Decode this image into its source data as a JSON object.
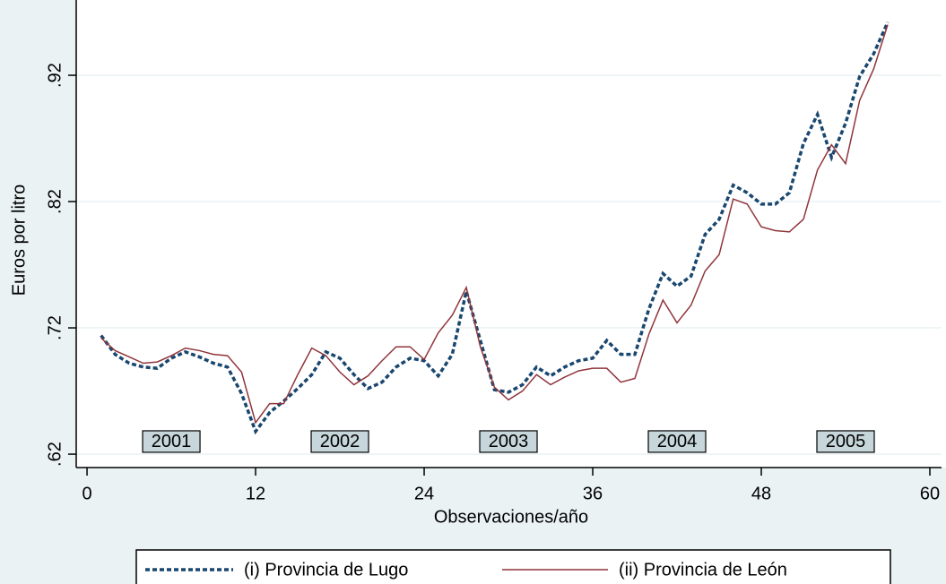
{
  "chart_data": {
    "type": "line",
    "x_label": "Observaciones/año",
    "y_label": "Euros por litro",
    "x": [
      1,
      2,
      3,
      4,
      5,
      6,
      7,
      8,
      9,
      10,
      11,
      12,
      13,
      14,
      15,
      16,
      17,
      18,
      19,
      20,
      21,
      22,
      23,
      24,
      25,
      26,
      27,
      28,
      29,
      30,
      31,
      32,
      33,
      34,
      35,
      36,
      37,
      38,
      39,
      40,
      41,
      42,
      43,
      44,
      45,
      46,
      47,
      48,
      49,
      50,
      51,
      52,
      53,
      54,
      55,
      56,
      57
    ],
    "series": [
      {
        "name": "(i) Provincia de Lugo",
        "color": "#1a476f",
        "dash": true,
        "values": [
          0.714,
          0.699,
          0.692,
          0.689,
          0.688,
          0.696,
          0.701,
          0.697,
          0.692,
          0.689,
          0.668,
          0.638,
          0.653,
          0.662,
          0.672,
          0.683,
          0.701,
          0.696,
          0.683,
          0.672,
          0.677,
          0.689,
          0.696,
          0.694,
          0.682,
          0.699,
          0.749,
          0.71,
          0.671,
          0.669,
          0.675,
          0.689,
          0.682,
          0.689,
          0.694,
          0.696,
          0.71,
          0.699,
          0.699,
          0.735,
          0.763,
          0.753,
          0.761,
          0.794,
          0.806,
          0.833,
          0.827,
          0.818,
          0.818,
          0.827,
          0.866,
          0.889,
          0.855,
          0.882,
          0.919,
          0.937,
          0.962
        ]
      },
      {
        "name": "(ii) Provincia de León",
        "color": "#90353b",
        "dash": false,
        "values": [
          0.712,
          0.702,
          0.697,
          0.692,
          0.693,
          0.698,
          0.704,
          0.702,
          0.699,
          0.698,
          0.685,
          0.645,
          0.66,
          0.66,
          0.683,
          0.704,
          0.698,
          0.685,
          0.675,
          0.682,
          0.694,
          0.705,
          0.705,
          0.695,
          0.716,
          0.73,
          0.752,
          0.705,
          0.673,
          0.663,
          0.67,
          0.683,
          0.675,
          0.681,
          0.686,
          0.688,
          0.688,
          0.677,
          0.68,
          0.715,
          0.742,
          0.724,
          0.738,
          0.765,
          0.778,
          0.822,
          0.818,
          0.8,
          0.797,
          0.796,
          0.806,
          0.845,
          0.865,
          0.85,
          0.9,
          0.925,
          0.96
        ]
      }
    ],
    "annotations": [
      "2001",
      "2002",
      "2003",
      "2004",
      "2005"
    ],
    "annotation_y": 0.63,
    "annotation_x": [
      6,
      18,
      30,
      42,
      54
    ],
    "xlim": [
      -0.77,
      60.83
    ],
    "ylim": [
      0.6094,
      0.9796
    ],
    "xticks": [
      0,
      12,
      24,
      36,
      48,
      60
    ],
    "yticks": [
      {
        "value": 0.62,
        "label": ".62"
      },
      {
        "value": 0.72,
        "label": ".72"
      },
      {
        "value": 0.82,
        "label": ".82"
      },
      {
        "value": 0.92,
        "label": ".92"
      }
    ],
    "grid": true
  }
}
